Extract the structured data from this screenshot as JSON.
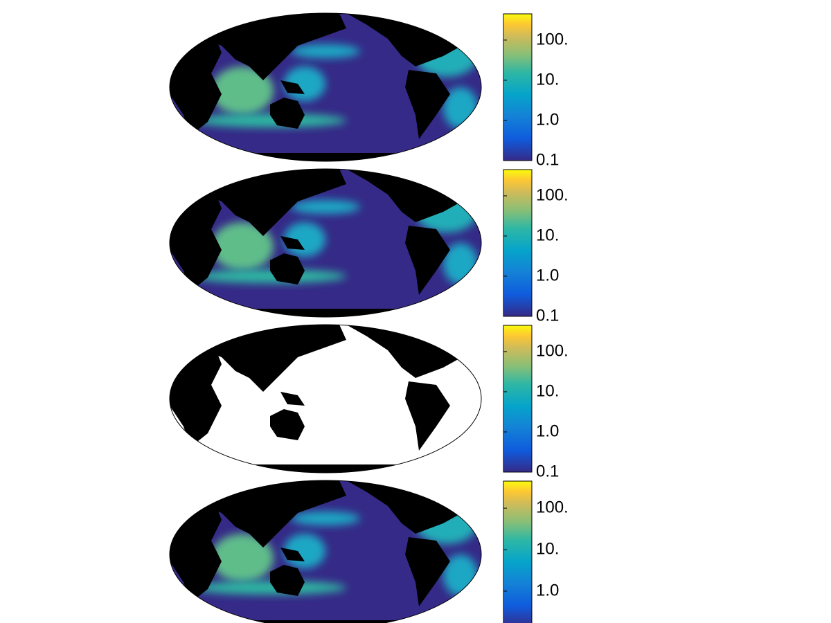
{
  "panels": [
    {
      "ocean_color": "#352a87",
      "shaded": true,
      "colorbar": {
        "scale": "log",
        "lim": [
          0.1,
          450
        ],
        "ticks": [
          0.1,
          {
            "value": 1,
            "label": "1.0"
          },
          {
            "value": 10,
            "label": "10."
          },
          {
            "value": 100,
            "label": "100."
          }
        ]
      }
    },
    {
      "ocean_color": "#352a87",
      "shaded": true,
      "colorbar": {
        "scale": "log",
        "lim": [
          0.1,
          450
        ],
        "ticks": [
          0.1,
          {
            "value": 1,
            "label": "1.0"
          },
          {
            "value": 10,
            "label": "10."
          },
          {
            "value": 100,
            "label": "100."
          }
        ]
      }
    },
    {
      "ocean_color": "#ffffff",
      "shaded": false,
      "colorbar": {
        "scale": "log",
        "lim": [
          0.1,
          450
        ],
        "ticks": [
          0.1,
          {
            "value": 1,
            "label": "1.0"
          },
          {
            "value": 10,
            "label": "10."
          },
          {
            "value": 100,
            "label": "100."
          }
        ]
      }
    },
    {
      "ocean_color": "#352a87",
      "shaded": true,
      "colorbar": {
        "scale": "log",
        "lim": [
          0.13,
          450
        ],
        "ticks": [
          {
            "value": 1,
            "label": "1.0"
          },
          {
            "value": 10,
            "label": "10."
          },
          {
            "value": 100,
            "label": "100."
          }
        ]
      }
    }
  ]
}
